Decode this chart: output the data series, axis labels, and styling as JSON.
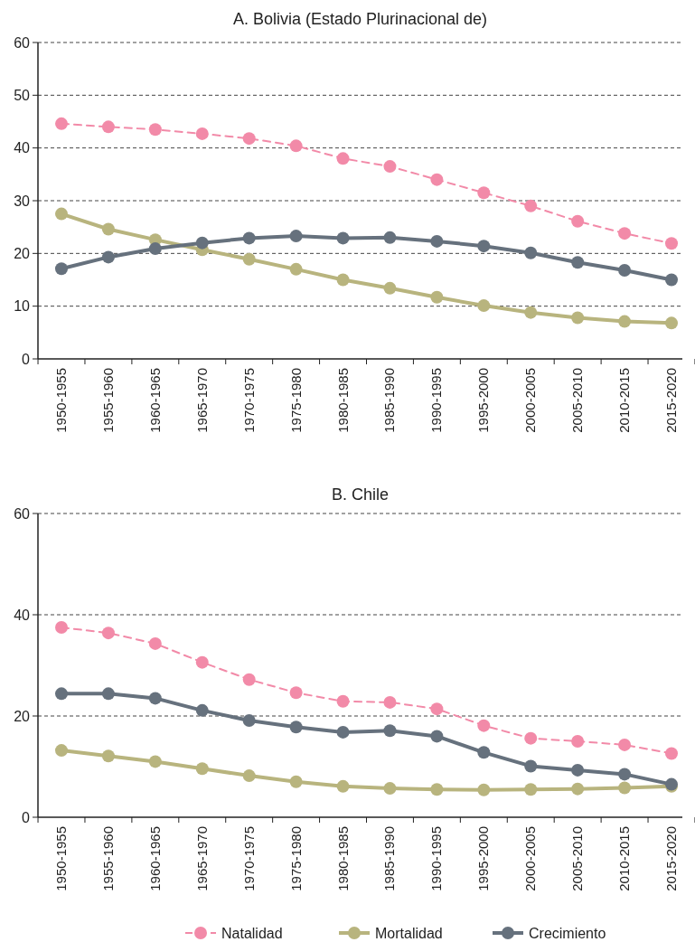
{
  "chart_data": [
    {
      "type": "line",
      "title": "A. Bolivia (Estado Plurinacional de)",
      "categories": [
        "1950-1955",
        "1955-1960",
        "1960-1965",
        "1965-1970",
        "1970-1975",
        "1975-1980",
        "1980-1985",
        "1985-1990",
        "1990-1995",
        "1995-2000",
        "2000-2005",
        "2005-2010",
        "2010-2015",
        "2015-2020"
      ],
      "ylim": [
        0,
        60
      ],
      "yticks": [
        0,
        10,
        20,
        30,
        40,
        50,
        60
      ],
      "grid": "y",
      "marker": "circle",
      "series": [
        {
          "color": "#f28aa8",
          "line_style": "dashed",
          "values": [
            44.6,
            44.0,
            43.5,
            42.7,
            41.8,
            40.4,
            38.0,
            36.5,
            34.0,
            31.5,
            29.0,
            26.1,
            23.8,
            21.9
          ]
        },
        {
          "color": "#b8b47e",
          "line_style": "solid",
          "values": [
            27.5,
            24.6,
            22.6,
            20.7,
            18.9,
            17.0,
            15.0,
            13.4,
            11.7,
            10.1,
            8.8,
            7.8,
            7.1,
            6.8
          ]
        },
        {
          "color": "#66717d",
          "line_style": "solid",
          "values": [
            17.1,
            19.3,
            20.9,
            22.0,
            22.9,
            23.3,
            22.9,
            23.0,
            22.3,
            21.4,
            20.1,
            18.3,
            16.8,
            15.0
          ]
        }
      ]
    },
    {
      "type": "line",
      "title": "B. Chile",
      "categories": [
        "1950-1955",
        "1955-1960",
        "1960-1965",
        "1965-1970",
        "1970-1975",
        "1975-1980",
        "1980-1985",
        "1985-1990",
        "1990-1995",
        "1995-2000",
        "2000-2005",
        "2005-2010",
        "2010-2015",
        "2015-2020"
      ],
      "ylim": [
        0,
        60
      ],
      "yticks": [
        0,
        20,
        40,
        60
      ],
      "grid": "y",
      "marker": "circle",
      "legend": "bottom",
      "series": [
        {
          "name": "Natalidad",
          "color": "#f28aa8",
          "line_style": "dashed",
          "values": [
            37.5,
            36.4,
            34.3,
            30.6,
            27.2,
            24.6,
            22.9,
            22.7,
            21.4,
            18.1,
            15.6,
            15.0,
            14.3,
            12.6
          ]
        },
        {
          "name": "Mortalidad",
          "color": "#b8b47e",
          "line_style": "solid",
          "values": [
            13.2,
            12.1,
            11.0,
            9.6,
            8.2,
            7.0,
            6.1,
            5.7,
            5.5,
            5.4,
            5.5,
            5.6,
            5.8,
            6.1
          ]
        },
        {
          "name": "Crecimiento",
          "color": "#66717d",
          "line_style": "solid",
          "values": [
            24.4,
            24.4,
            23.5,
            21.1,
            19.1,
            17.8,
            16.8,
            17.1,
            16.0,
            12.8,
            10.1,
            9.3,
            8.5,
            6.5
          ]
        }
      ]
    }
  ]
}
